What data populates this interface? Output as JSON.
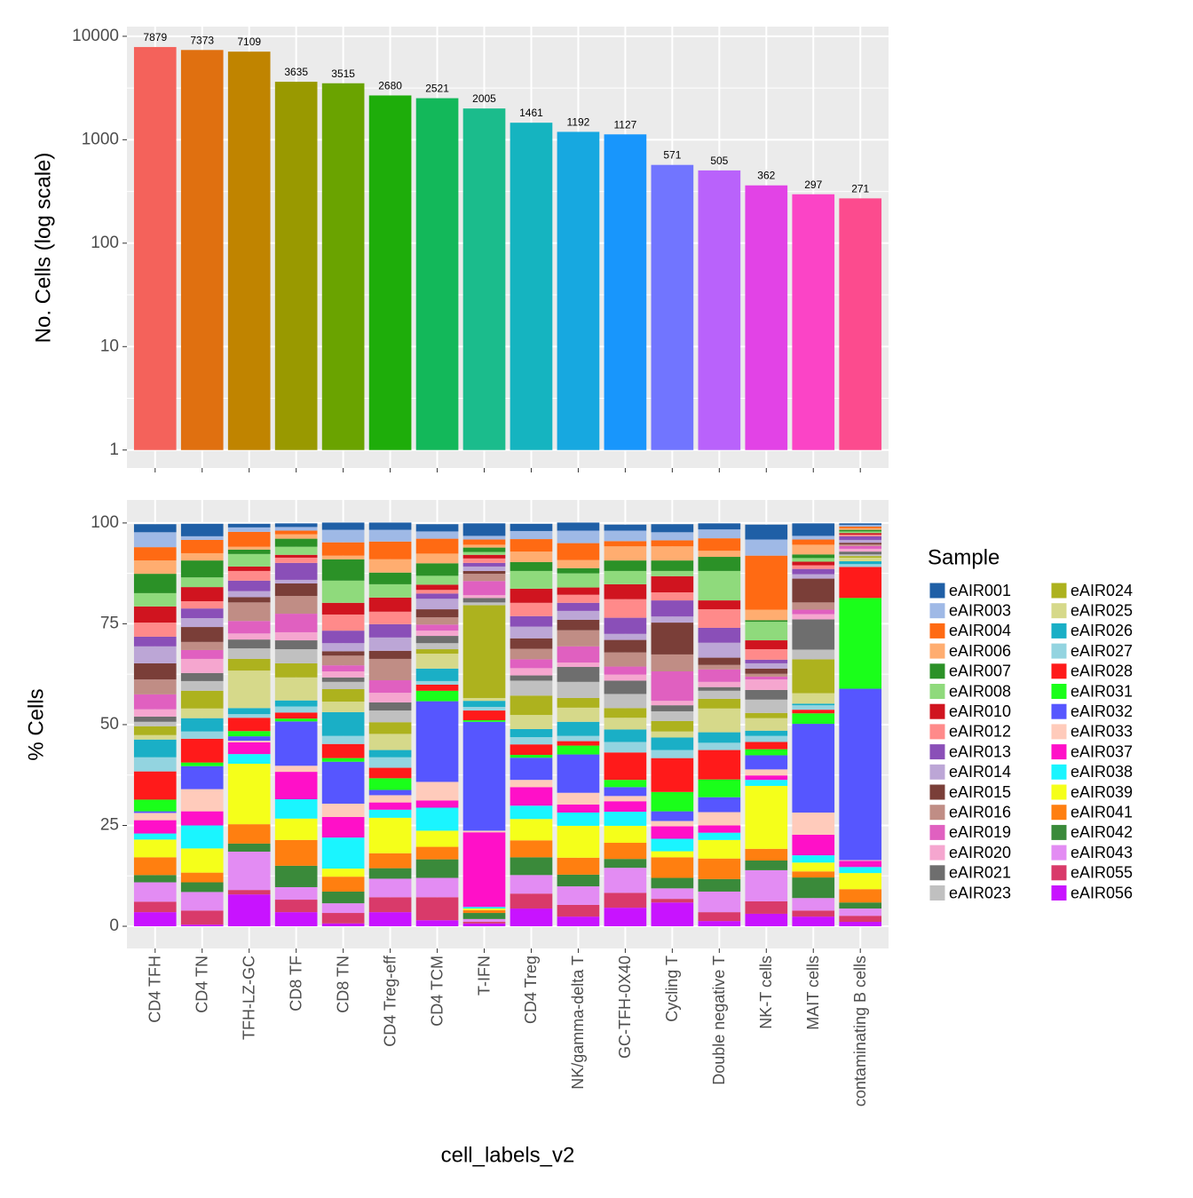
{
  "chart_data": [
    {
      "type": "bar",
      "log_scale": true,
      "grid": true,
      "ylabel": "No. Cells (log scale)",
      "values": [
        7879,
        7373,
        7109,
        3635,
        3515,
        2680,
        2521,
        2005,
        1461,
        1192,
        1127,
        571,
        505,
        362,
        297,
        271
      ],
      "colors": [
        "#f4625b",
        "#e07010",
        "#c08400",
        "#999900",
        "#6aa300",
        "#1ead0a",
        "#13b85a",
        "#1bbc8c",
        "#15b4c0",
        "#17a8e0",
        "#1896fc",
        "#7175ff",
        "#b962fb",
        "#e243e6",
        "#fb44c6",
        "#fc4b8e"
      ],
      "ylim": [
        0.67,
        12400
      ],
      "yticks": [
        1,
        10,
        100,
        1000,
        10000
      ]
    },
    {
      "type": "stacked_bar",
      "grid": true,
      "ylabel": "% Cells",
      "xlabel": "cell_labels_v2",
      "categories": [
        "CD4 TFH",
        "CD4 TN",
        "TFH-LZ-GC",
        "CD8 TF",
        "CD8 TN",
        "CD4 Treg-eff",
        "CD4 TCM",
        "T-IFN",
        "CD4 Treg",
        "NK/gamma-delta T",
        "GC-TFH-0X40",
        "Cycling T",
        "Double negative T",
        "NK-T cells",
        "MAIT cells",
        "contaminating B cells"
      ],
      "ylim": [
        -5.5,
        105.7
      ],
      "yticks": [
        0,
        25,
        50,
        75,
        100
      ],
      "legend_title": "Sample",
      "legend": "right",
      "series": [
        {
          "name": "eAIR001",
          "color": "#1f5fa6",
          "values": [
            2,
            3.1,
            0.9,
            0.9,
            1.8,
            1.8,
            1.8,
            3.1,
            1.8,
            2,
            1.5,
            2,
            1.5,
            3.7,
            3.1,
            0.4
          ]
        },
        {
          "name": "eAIR003",
          "color": "#9fb9e6",
          "values": [
            3.7,
            0.9,
            1.1,
            0.9,
            3.1,
            2.9,
            1.8,
            0.9,
            2,
            3.1,
            2.6,
            2,
            2.2,
            4,
            0.9,
            0.4
          ]
        },
        {
          "name": "eAIR004",
          "color": "#ff6a13",
          "values": [
            3.3,
            3.3,
            3.7,
            0.9,
            3.3,
            4.4,
            3.7,
            1.3,
            3.1,
            4.2,
            1.3,
            1.5,
            3.1,
            13.4,
            1.3,
            0.4
          ]
        },
        {
          "name": "eAIR006",
          "color": "#ffad70",
          "values": [
            3.3,
            1.8,
            0.7,
            1.1,
            0.9,
            3.3,
            2.4,
            0.7,
            2.6,
            2,
            3.5,
            3.5,
            1.5,
            2.6,
            2.4,
            0.4
          ]
        },
        {
          "name": "eAIR007",
          "color": "#2b9127",
          "values": [
            4.8,
            4.2,
            1.1,
            2,
            5.3,
            2.9,
            3.1,
            1.1,
            2.2,
            1.3,
            2.6,
            2.6,
            3.5,
            0.4,
            0.9,
            0.4
          ]
        },
        {
          "name": "eAIR008",
          "color": "#8fda7c",
          "values": [
            3.3,
            2.4,
            3.1,
            2,
            5.5,
            3.3,
            2.2,
            0.7,
            4.4,
            3.5,
            3.3,
            1.3,
            7.3,
            4.6,
            0.9,
            0.4
          ]
        },
        {
          "name": "eAIR010",
          "color": "#d0141f",
          "values": [
            4,
            3.5,
            1.1,
            0.7,
            2.9,
            3.5,
            1.3,
            0.9,
            3.5,
            1.8,
            3.7,
            4,
            2.2,
            2.2,
            0.9,
            0.4
          ]
        },
        {
          "name": "eAIR012",
          "color": "#ff8a8a",
          "values": [
            3.5,
            1.8,
            2.4,
            1.3,
            4,
            3.1,
            0.9,
            1.1,
            3.3,
            2,
            4.6,
            2,
            4.6,
            2.6,
            0.9,
            0.4
          ]
        },
        {
          "name": "eAIR013",
          "color": "#8a4fb8",
          "values": [
            2.4,
            2.4,
            2.6,
            4.2,
            3.1,
            3.3,
            1.3,
            0.9,
            2.6,
            2,
            4,
            4,
            3.7,
            0.9,
            1.3,
            0.9
          ]
        },
        {
          "name": "eAIR014",
          "color": "#bca6d6",
          "values": [
            4.2,
            2.2,
            1.5,
            0.9,
            2,
            3.3,
            2.6,
            1.1,
            2.9,
            2.2,
            1.5,
            1.5,
            3.7,
            1.3,
            1.1,
            0.7
          ]
        },
        {
          "name": "eAIR015",
          "color": "#7a3e38",
          "values": [
            4,
            3.7,
            1.3,
            3.1,
            1.1,
            2,
            2,
            0.7,
            2.6,
            2.6,
            3.1,
            7.9,
            1.8,
            1.3,
            5.9,
            0.4
          ]
        },
        {
          "name": "eAIR016",
          "color": "#c08d85",
          "values": [
            3.7,
            2,
            4.6,
            4.4,
            2.4,
            5.3,
            1.8,
            1.8,
            2.6,
            4,
            3.5,
            4.2,
            1.1,
            0.7,
            1.8,
            0.4
          ]
        },
        {
          "name": "eAIR019",
          "color": "#e060c0",
          "values": [
            3.7,
            2.2,
            3.1,
            4.6,
            1.5,
            3.1,
            1.5,
            3.5,
            2.2,
            4,
            2,
            7.3,
            3.1,
            0.7,
            1.1,
            0.7
          ]
        },
        {
          "name": "eAIR020",
          "color": "#f5a6cf",
          "values": [
            1.8,
            3.5,
            1.5,
            2,
            1.5,
            2.4,
            1.3,
            0.7,
            1.8,
            1.1,
            1.5,
            1.1,
            1.3,
            2.6,
            1.3,
            0.7
          ]
        },
        {
          "name": "eAIR021",
          "color": "#6e6e6e",
          "values": [
            1.3,
            2,
            2.2,
            2.2,
            1.1,
            2,
            1.8,
            1.1,
            1.3,
            3.7,
            3.3,
            1.5,
            0.9,
            2.4,
            7.5,
            0.7
          ]
        },
        {
          "name": "eAIR023",
          "color": "#c0c0c0",
          "values": [
            1.1,
            2.4,
            2.6,
            3.5,
            1.8,
            2.9,
            1.5,
            0.7,
            3.7,
            4,
            3.5,
            2.4,
            2,
            3.3,
            2.4,
            0.4
          ]
        },
        {
          "name": "eAIR024",
          "color": "#adb21e",
          "values": [
            2.2,
            4.4,
            2.9,
            3.5,
            3.1,
            2.9,
            1.1,
            23,
            4.8,
            2.4,
            2.4,
            2.6,
            2.4,
            1.3,
            8.4,
            0.4
          ]
        },
        {
          "name": "eAIR025",
          "color": "#d6d98a",
          "values": [
            1.1,
            2.4,
            9.3,
            5.7,
            2.6,
            4,
            3.7,
            0.7,
            3.5,
            3.5,
            2.9,
            1.5,
            5.9,
            3.1,
            2.6,
            0.9
          ]
        },
        {
          "name": "eAIR026",
          "color": "#1aafc6",
          "values": [
            4.4,
            3.3,
            1.5,
            1.5,
            5.9,
            1.8,
            3.1,
            1.5,
            2,
            3.5,
            3.1,
            3.1,
            2.6,
            1.3,
            0.4,
            0.7
          ]
        },
        {
          "name": "eAIR027",
          "color": "#93d4e0",
          "values": [
            3.5,
            1.8,
            0.9,
            1.5,
            2,
            2.6,
            0.9,
            0.9,
            1.8,
            1.3,
            2.6,
            2,
            1.8,
            1.5,
            1.1,
            0.7
          ]
        },
        {
          "name": "eAIR028",
          "color": "#ff1a1a",
          "values": [
            7,
            5.9,
            3.3,
            1.5,
            3.5,
            2.6,
            1.5,
            2.4,
            2.6,
            1.1,
            6.8,
            8.4,
            7.3,
            1.8,
            0.9,
            7.7
          ]
        },
        {
          "name": "eAIR031",
          "color": "#1aff1a",
          "values": [
            2.9,
            0.9,
            1.3,
            0.7,
            0.9,
            2.9,
            2.6,
            0.4,
            0.7,
            2.2,
            1.8,
            4.8,
            4.4,
            1.5,
            2.6,
            22.5
          ]
        },
        {
          "name": "eAIR032",
          "color": "#5656ff",
          "values": [
            0.4,
            5.7,
            1.1,
            11,
            10.4,
            1.3,
            20,
            27,
            5.5,
            9.5,
            2.2,
            2.4,
            3.7,
            3.5,
            22,
            42.5
          ]
        },
        {
          "name": "eAIR033",
          "color": "#ffcbbb",
          "values": [
            1.8,
            5.5,
            0.4,
            1.5,
            3.3,
            1.8,
            4.6,
            0.4,
            1.8,
            2.9,
            1.3,
            1.3,
            3.3,
            1.5,
            5.5,
            0.2
          ]
        },
        {
          "name": "eAIR037",
          "color": "#ff10c8",
          "values": [
            3.3,
            3.5,
            2.9,
            6.8,
            5.1,
            1.8,
            1.8,
            18.5,
            4.6,
            2,
            2.6,
            3.1,
            1.8,
            1.1,
            5.1,
            1.5
          ]
        },
        {
          "name": "eAIR038",
          "color": "#1af5ff",
          "values": [
            1.5,
            5.7,
            2.4,
            4.8,
            7.7,
            2,
            5.7,
            0.4,
            3.3,
            3.3,
            3.5,
            3.1,
            1.8,
            1.5,
            1.8,
            1.5
          ]
        },
        {
          "name": "eAIR039",
          "color": "#f5ff1a",
          "values": [
            4.4,
            6,
            15,
            5.3,
            2,
            8.8,
            4,
            0.4,
            5.3,
            7.9,
            4.2,
            1.5,
            4.6,
            15.6,
            2.2,
            4
          ]
        },
        {
          "name": "eAIR041",
          "color": "#ff7f10",
          "values": [
            4.4,
            2.4,
            4.8,
            6.4,
            3.7,
            3.7,
            3.1,
            0.7,
            4.2,
            4.2,
            4,
            5.1,
            5.1,
            2.9,
            1.5,
            3.3
          ]
        },
        {
          "name": "eAIR042",
          "color": "#3a8a3a",
          "values": [
            1.8,
            2.4,
            2,
            5.3,
            2.9,
            2.6,
            4.6,
            1.5,
            4.4,
            2.9,
            2.2,
            2.6,
            3.1,
            2.4,
            5.1,
            1.5
          ]
        },
        {
          "name": "eAIR043",
          "color": "#e38cf3",
          "values": [
            4.8,
            4.6,
            9.5,
            3.1,
            2.4,
            4.6,
            4.8,
            0.7,
            4.6,
            4.6,
            6.2,
            2.6,
            5.1,
            7.7,
            3.1,
            1.8
          ]
        },
        {
          "name": "eAIR055",
          "color": "#d93a6a",
          "values": [
            2.6,
            3.5,
            1.1,
            3.1,
            2.6,
            3.7,
            5.7,
            0.4,
            3.7,
            2.9,
            3.7,
            0.9,
            2.2,
            3.1,
            1.5,
            1.5
          ]
        },
        {
          "name": "eAIR056",
          "color": "#c813ff",
          "values": [
            3.5,
            0.4,
            7.9,
            3.5,
            0.7,
            3.5,
            1.5,
            0.7,
            4.4,
            2.4,
            4.6,
            5.9,
            1.3,
            3.1,
            2.4,
            1.1
          ]
        }
      ]
    }
  ]
}
